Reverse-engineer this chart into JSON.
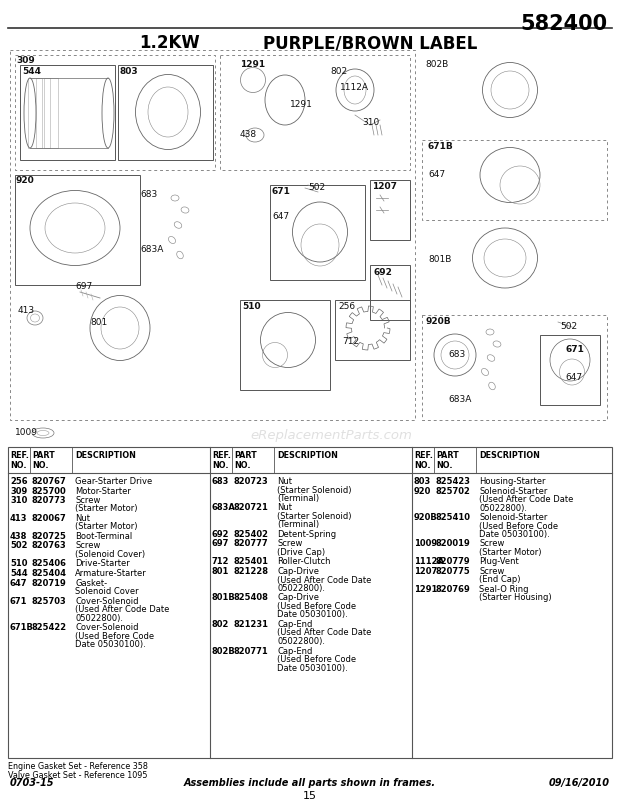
{
  "page_number": "582400",
  "subtitle_kw": "1.2KW",
  "subtitle_label": "PURPLE/BROWN LABEL",
  "watermark": "eReplacementParts.com",
  "footer_left": "0703-15",
  "footer_center": "Assemblies include all parts shown in frames.",
  "footer_right": "09/16/2010",
  "footer_page": "15",
  "footnote1": "Engine Gasket Set - Reference 358",
  "footnote2": "Valve Gasket Set - Reference 1095",
  "col1_rows": [
    [
      "256",
      "820767",
      "Gear-Starter Drive"
    ],
    [
      "309",
      "825700",
      "Motor-Starter"
    ],
    [
      "310",
      "820773",
      "Screw\n(Starter Motor)"
    ],
    [
      "413",
      "820067",
      "Nut\n(Starter Motor)"
    ],
    [
      "438",
      "820725",
      "Boot-Terminal"
    ],
    [
      "502",
      "820763",
      "Screw\n(Solenoid Cover)"
    ],
    [
      "510",
      "825406",
      "Drive-Starter"
    ],
    [
      "544",
      "825404",
      "Armature-Starter"
    ],
    [
      "647",
      "820719",
      "Gasket-\nSolenoid Cover"
    ],
    [
      "671",
      "825703",
      "Cover-Solenoid\n(Used After Code Date\n05022800)."
    ],
    [
      "671B",
      "825422",
      "Cover-Solenoid\n(Used Before Code\nDate 05030100)."
    ]
  ],
  "col2_rows": [
    [
      "683",
      "820723",
      "Nut\n(Starter Solenoid)\n(Terminal)"
    ],
    [
      "683A",
      "820721",
      "Nut\n(Starter Solenoid)\n(Terminal)"
    ],
    [
      "692",
      "825402",
      "Detent-Spring"
    ],
    [
      "697",
      "820777",
      "Screw\n(Drive Cap)"
    ],
    [
      "712",
      "825401",
      "Roller-Clutch"
    ],
    [
      "801",
      "821228",
      "Cap-Drive\n(Used After Code Date\n05022800)."
    ],
    [
      "801B",
      "825408",
      "Cap-Drive\n(Used Before Code\nDate 05030100)."
    ],
    [
      "802",
      "821231",
      "Cap-End\n(Used After Code Date\n05022800)."
    ],
    [
      "802B",
      "820771",
      "Cap-End\n(Used Before Code\nDate 05030100)."
    ]
  ],
  "col3_rows": [
    [
      "803",
      "825423",
      "Housing-Starter"
    ],
    [
      "920",
      "825702",
      "Solenoid-Starter\n(Used After Code Date\n05022800)."
    ],
    [
      "920B",
      "825410",
      "Solenoid-Starter\n(Used Before Code\nDate 05030100)."
    ],
    [
      "1009",
      "820019",
      "Screw\n(Starter Motor)"
    ],
    [
      "1112A",
      "820779",
      "Plug-Vent"
    ],
    [
      "1207",
      "820775",
      "Screw\n(End Cap)"
    ],
    [
      "1291",
      "820769",
      "Seal-O Ring\n(Starter Housing)"
    ]
  ],
  "bg_color": "#ffffff",
  "text_color": "#000000",
  "border_color": "#555555",
  "dotted_color": "#888888"
}
